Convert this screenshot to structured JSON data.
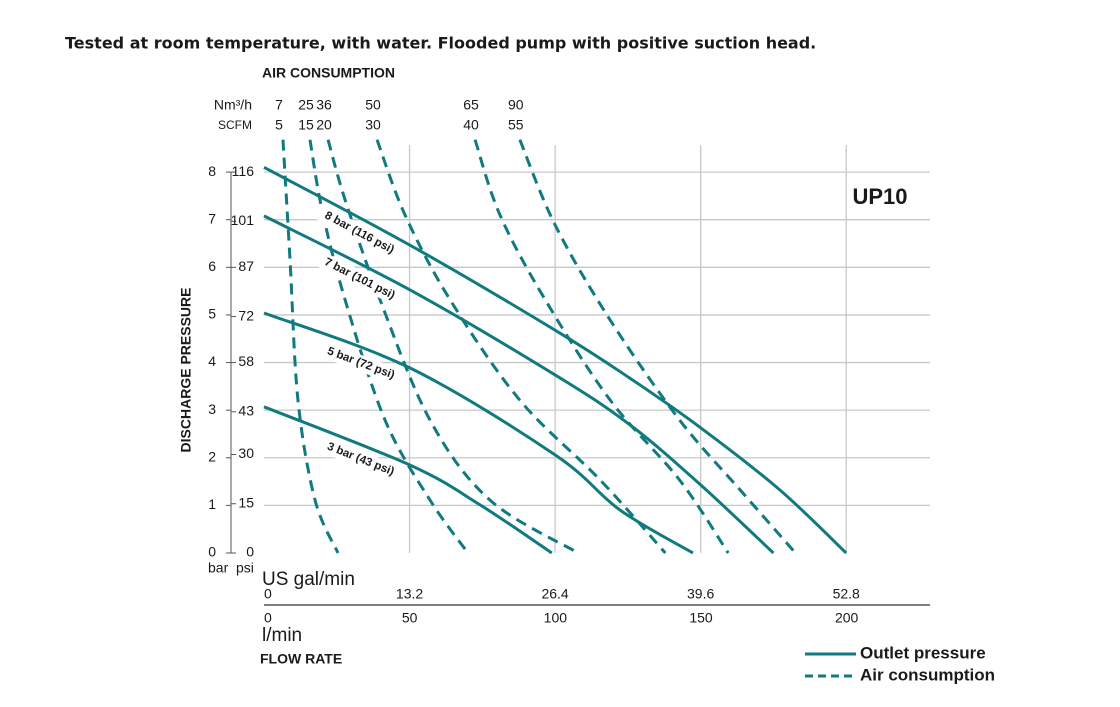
{
  "chart_data": {
    "type": "line",
    "title": "Tested at room temperature, with water. Flooded pump with positive suction head.",
    "model_label": "UP10",
    "air_axis_title": "AIR CONSUMPTION",
    "air_units": [
      "Nm³/h",
      "SCFM"
    ],
    "y_label": "DISCHARGE PRESSURE",
    "y_units": [
      "bar",
      "psi"
    ],
    "x_label": "FLOW RATE",
    "x_unit": "US gal/min",
    "x2_unit": "l/min",
    "color": "#117a7e",
    "grid": true,
    "xlim": [
      0,
      60.4
    ],
    "xticks": [
      0,
      13.2,
      26.4,
      39.6,
      52.8
    ],
    "x2lim": [
      0,
      228.6
    ],
    "x2ticks": [
      0,
      50,
      100,
      150,
      200
    ],
    "ylim": [
      0,
      8.8
    ],
    "yticks": [
      0,
      1,
      2,
      3,
      4,
      5,
      6,
      7,
      8
    ],
    "y2lim": [
      0,
      127.6
    ],
    "y2ticks": [
      0,
      15,
      30,
      43,
      58,
      72,
      87,
      101,
      116
    ],
    "legend_corner": "bottom-right",
    "legend": [
      {
        "label": "Outlet pressure",
        "style": "solid"
      },
      {
        "label": "Air consumption",
        "style": "dashed"
      }
    ],
    "series": [
      {
        "name": "8 bar (116 psi)",
        "style": "solid",
        "x": [
          0,
          13.2,
          26.4,
          33,
          39.6,
          46.8,
          52.8
        ],
        "values": [
          8.1,
          6.47,
          4.68,
          3.7,
          2.63,
          1.32,
          0
        ]
      },
      {
        "name": "7 bar (101 psi)",
        "style": "solid",
        "x": [
          0,
          13.2,
          26.4,
          33.2,
          39.6,
          46.2
        ],
        "values": [
          7.08,
          5.53,
          3.74,
          2.69,
          1.43,
          0
        ]
      },
      {
        "name": "5 bar (72 psi)",
        "style": "solid",
        "x": [
          0,
          13.2,
          26.4,
          32.3,
          38.9
        ],
        "values": [
          5.04,
          3.89,
          2.06,
          0.9,
          0
        ]
      },
      {
        "name": "3 bar (43 psi)",
        "style": "solid",
        "x": [
          0,
          13.2,
          19.6,
          26.1
        ],
        "values": [
          3.07,
          1.85,
          1.01,
          0
        ]
      },
      {
        "nm3h": 7,
        "scfm": 5,
        "style": "dashed",
        "x": [
          1.72,
          2.36,
          3.08,
          4.63,
          6.71
        ],
        "values": [
          8.68,
          6.16,
          3.21,
          1.11,
          0
        ]
      },
      {
        "nm3h": 25,
        "scfm": 15,
        "style": "dashed",
        "x": [
          4.17,
          5.26,
          7.35,
          10.98,
          15.06,
          18.5
        ],
        "values": [
          8.68,
          7.21,
          5.32,
          2.79,
          1.11,
          0
        ]
      },
      {
        "nm3h": 36,
        "scfm": 20,
        "style": "dashed",
        "x": [
          5.81,
          7.35,
          10.52,
          15.06,
          20.5,
          28.5
        ],
        "values": [
          8.68,
          7.42,
          5.32,
          2.79,
          1.11,
          0
        ]
      },
      {
        "nm3h": 50,
        "scfm": 30,
        "style": "dashed",
        "x": [
          10.25,
          12.79,
          16.87,
          23.2,
          30.5,
          36.4
        ],
        "values": [
          8.68,
          7.1,
          5.32,
          3.21,
          1.53,
          0
        ]
      },
      {
        "nm3h": 65,
        "scfm": 40,
        "style": "dashed",
        "x": [
          19.14,
          21.4,
          25.5,
          31.4,
          37.7,
          42.1
        ],
        "values": [
          8.68,
          7.1,
          5.32,
          3.21,
          1.53,
          0
        ]
      },
      {
        "nm3h": 90,
        "scfm": 55,
        "style": "dashed",
        "x": [
          23.2,
          26.4,
          31.4,
          37.7,
          43.2,
          48.2
        ],
        "values": [
          8.68,
          6.89,
          4.89,
          2.79,
          1.32,
          0
        ]
      }
    ]
  }
}
